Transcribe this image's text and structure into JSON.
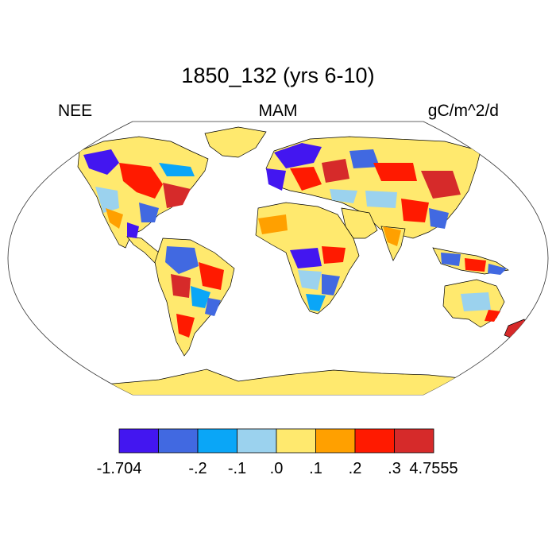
{
  "title": "1850_132 (yrs 6-10)",
  "left_label": "NEE",
  "center_label": "MAM",
  "right_label": "gC/m^2/d",
  "colorbar": {
    "bins": [
      {
        "color": "#4316f0"
      },
      {
        "color": "#4169e1"
      },
      {
        "color": "#0aa6f7"
      },
      {
        "color": "#9bd2ee"
      },
      {
        "color": "#ffe96e"
      },
      {
        "color": "#ffa000"
      },
      {
        "color": "#ff1a00"
      },
      {
        "color": "#d62a2a"
      }
    ],
    "labels": [
      "-1.704",
      "-.2",
      "-.1",
      ".0",
      ".1",
      ".2",
      ".3",
      "4.7555"
    ]
  },
  "colors": {
    "land": "#ffe96e",
    "ocean": "#ffffff",
    "coast": "#000000"
  }
}
